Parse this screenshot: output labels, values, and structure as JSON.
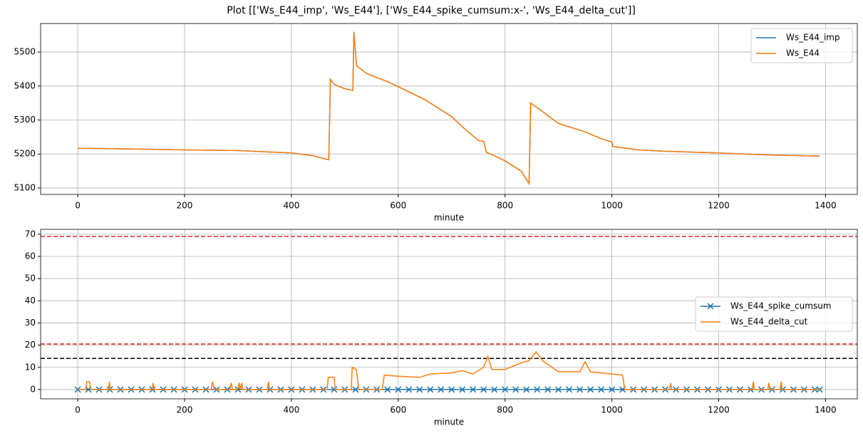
{
  "title": "Plot [['Ws_E44_imp', 'Ws_E44'], ['Ws_E44_spike_cumsum:x-', 'Ws_E44_delta_cut']]",
  "chart_data": [
    {
      "type": "line",
      "xlabel": "minute",
      "xlim": [
        -69.5,
        1459.5
      ],
      "xticks": [
        0,
        200,
        400,
        600,
        800,
        1000,
        1200,
        1400
      ],
      "ylim": [
        5081,
        5584
      ],
      "yticks": [
        5100,
        5200,
        5300,
        5400,
        5500
      ],
      "grid": true,
      "legend": "upper right",
      "series": [
        {
          "name": "Ws_E44_imp",
          "color": "#1f77b4",
          "x": [
            0,
            100,
            200,
            300,
            400,
            440,
            470,
            473,
            480,
            500,
            515,
            517,
            522,
            540,
            560,
            580,
            600,
            650,
            700,
            720,
            750,
            760,
            765,
            780,
            800,
            830,
            845,
            848,
            870,
            900,
            950,
            980,
            1000,
            1002,
            1050,
            1100,
            1200,
            1300,
            1389
          ],
          "values": [
            5217,
            5215,
            5212,
            5210,
            5203,
            5195,
            5183,
            5420,
            5405,
            5392,
            5387,
            5560,
            5460,
            5438,
            5425,
            5413,
            5398,
            5360,
            5310,
            5280,
            5240,
            5237,
            5205,
            5195,
            5180,
            5150,
            5113,
            5350,
            5325,
            5290,
            5265,
            5245,
            5235,
            5222,
            5212,
            5208,
            5203,
            5197,
            5194
          ]
        },
        {
          "name": "Ws_E44",
          "color": "#ff7f0e",
          "x": [
            0,
            100,
            200,
            300,
            400,
            440,
            470,
            473,
            480,
            500,
            515,
            517,
            522,
            540,
            560,
            580,
            600,
            650,
            700,
            720,
            750,
            760,
            765,
            780,
            800,
            830,
            845,
            848,
            870,
            900,
            950,
            980,
            1000,
            1002,
            1050,
            1100,
            1200,
            1300,
            1389
          ],
          "values": [
            5217,
            5215,
            5212,
            5210,
            5203,
            5195,
            5183,
            5420,
            5405,
            5392,
            5387,
            5560,
            5460,
            5438,
            5425,
            5413,
            5398,
            5360,
            5310,
            5280,
            5240,
            5237,
            5205,
            5195,
            5180,
            5150,
            5113,
            5350,
            5325,
            5290,
            5265,
            5245,
            5235,
            5222,
            5212,
            5208,
            5203,
            5197,
            5194
          ]
        }
      ]
    },
    {
      "type": "line",
      "xlabel": "minute",
      "xlim": [
        -69.5,
        1459.5
      ],
      "xticks": [
        0,
        200,
        400,
        600,
        800,
        1000,
        1200,
        1400
      ],
      "ylim": [
        -4.2,
        72.2
      ],
      "yticks": [
        0,
        10,
        20,
        30,
        40,
        50,
        60,
        70
      ],
      "grid": true,
      "legend": "center right",
      "hlines": [
        {
          "y": 69,
          "color": "#d62728"
        },
        {
          "y": 20.5,
          "color": "#d62728"
        },
        {
          "y": 14,
          "color": "#000000"
        }
      ],
      "series": [
        {
          "name": "Ws_E44_spike_cumsum",
          "color": "#1f77b4",
          "marker": "x",
          "x": [
            0,
            20,
            40,
            60,
            80,
            100,
            120,
            140,
            160,
            180,
            200,
            220,
            240,
            260,
            280,
            300,
            320,
            340,
            360,
            380,
            400,
            420,
            440,
            460,
            480,
            500,
            520,
            540,
            560,
            580,
            600,
            620,
            640,
            660,
            680,
            700,
            720,
            740,
            760,
            780,
            800,
            820,
            840,
            860,
            880,
            900,
            920,
            940,
            960,
            980,
            1000,
            1020,
            1040,
            1060,
            1080,
            1100,
            1120,
            1140,
            1160,
            1180,
            1200,
            1220,
            1240,
            1260,
            1280,
            1300,
            1320,
            1340,
            1360,
            1380,
            1389
          ],
          "values": [
            0,
            0,
            0,
            0,
            0,
            0,
            0,
            0,
            0,
            0,
            0,
            0,
            0,
            0,
            0,
            0,
            0,
            0,
            0,
            0,
            0,
            0,
            0,
            0,
            0,
            0,
            0,
            0,
            0,
            0,
            0,
            0,
            0,
            0,
            0,
            0,
            0,
            0,
            0,
            0,
            0,
            0,
            0,
            0,
            0,
            0,
            0,
            0,
            0,
            0,
            0,
            0,
            0,
            0,
            0,
            0,
            0,
            0,
            0,
            0,
            0,
            0,
            0,
            0,
            0,
            0,
            0,
            0,
            0,
            0,
            0
          ]
        },
        {
          "name": "Ws_E44_delta_cut",
          "color": "#ff7f0e",
          "x": [
            0,
            15,
            17,
            22,
            24,
            58,
            59,
            61,
            140,
            141,
            143,
            250,
            252,
            256,
            285,
            287,
            290,
            300,
            302,
            305,
            307,
            309,
            355,
            357,
            359,
            467,
            469,
            480,
            482,
            512,
            514,
            522,
            526,
            570,
            574,
            600,
            640,
            660,
            700,
            720,
            740,
            760,
            768,
            775,
            800,
            815,
            830,
            845,
            858,
            870,
            900,
            940,
            950,
            960,
            1000,
            1020,
            1024,
            1108,
            1110,
            1112,
            1263,
            1265,
            1267,
            1292,
            1294,
            1296,
            1315,
            1317,
            1319,
            1389
          ],
          "values": [
            0,
            0,
            3.5,
            3.5,
            0,
            0,
            3.5,
            0,
            0,
            3,
            0,
            0,
            3.5,
            0,
            0,
            3,
            0,
            0,
            3,
            0,
            3,
            0,
            0,
            3.5,
            0,
            0,
            5.5,
            5.5,
            0,
            0,
            10,
            9,
            0,
            0,
            6.5,
            6,
            5.5,
            7,
            7.5,
            8.5,
            7,
            10,
            15,
            9,
            9,
            10.5,
            12,
            13,
            17,
            13,
            8,
            8,
            12.5,
            8,
            7,
            6.5,
            0,
            0,
            3,
            0,
            0,
            3.5,
            0,
            0,
            3,
            0,
            0,
            3.5,
            0,
            0
          ]
        }
      ]
    }
  ]
}
